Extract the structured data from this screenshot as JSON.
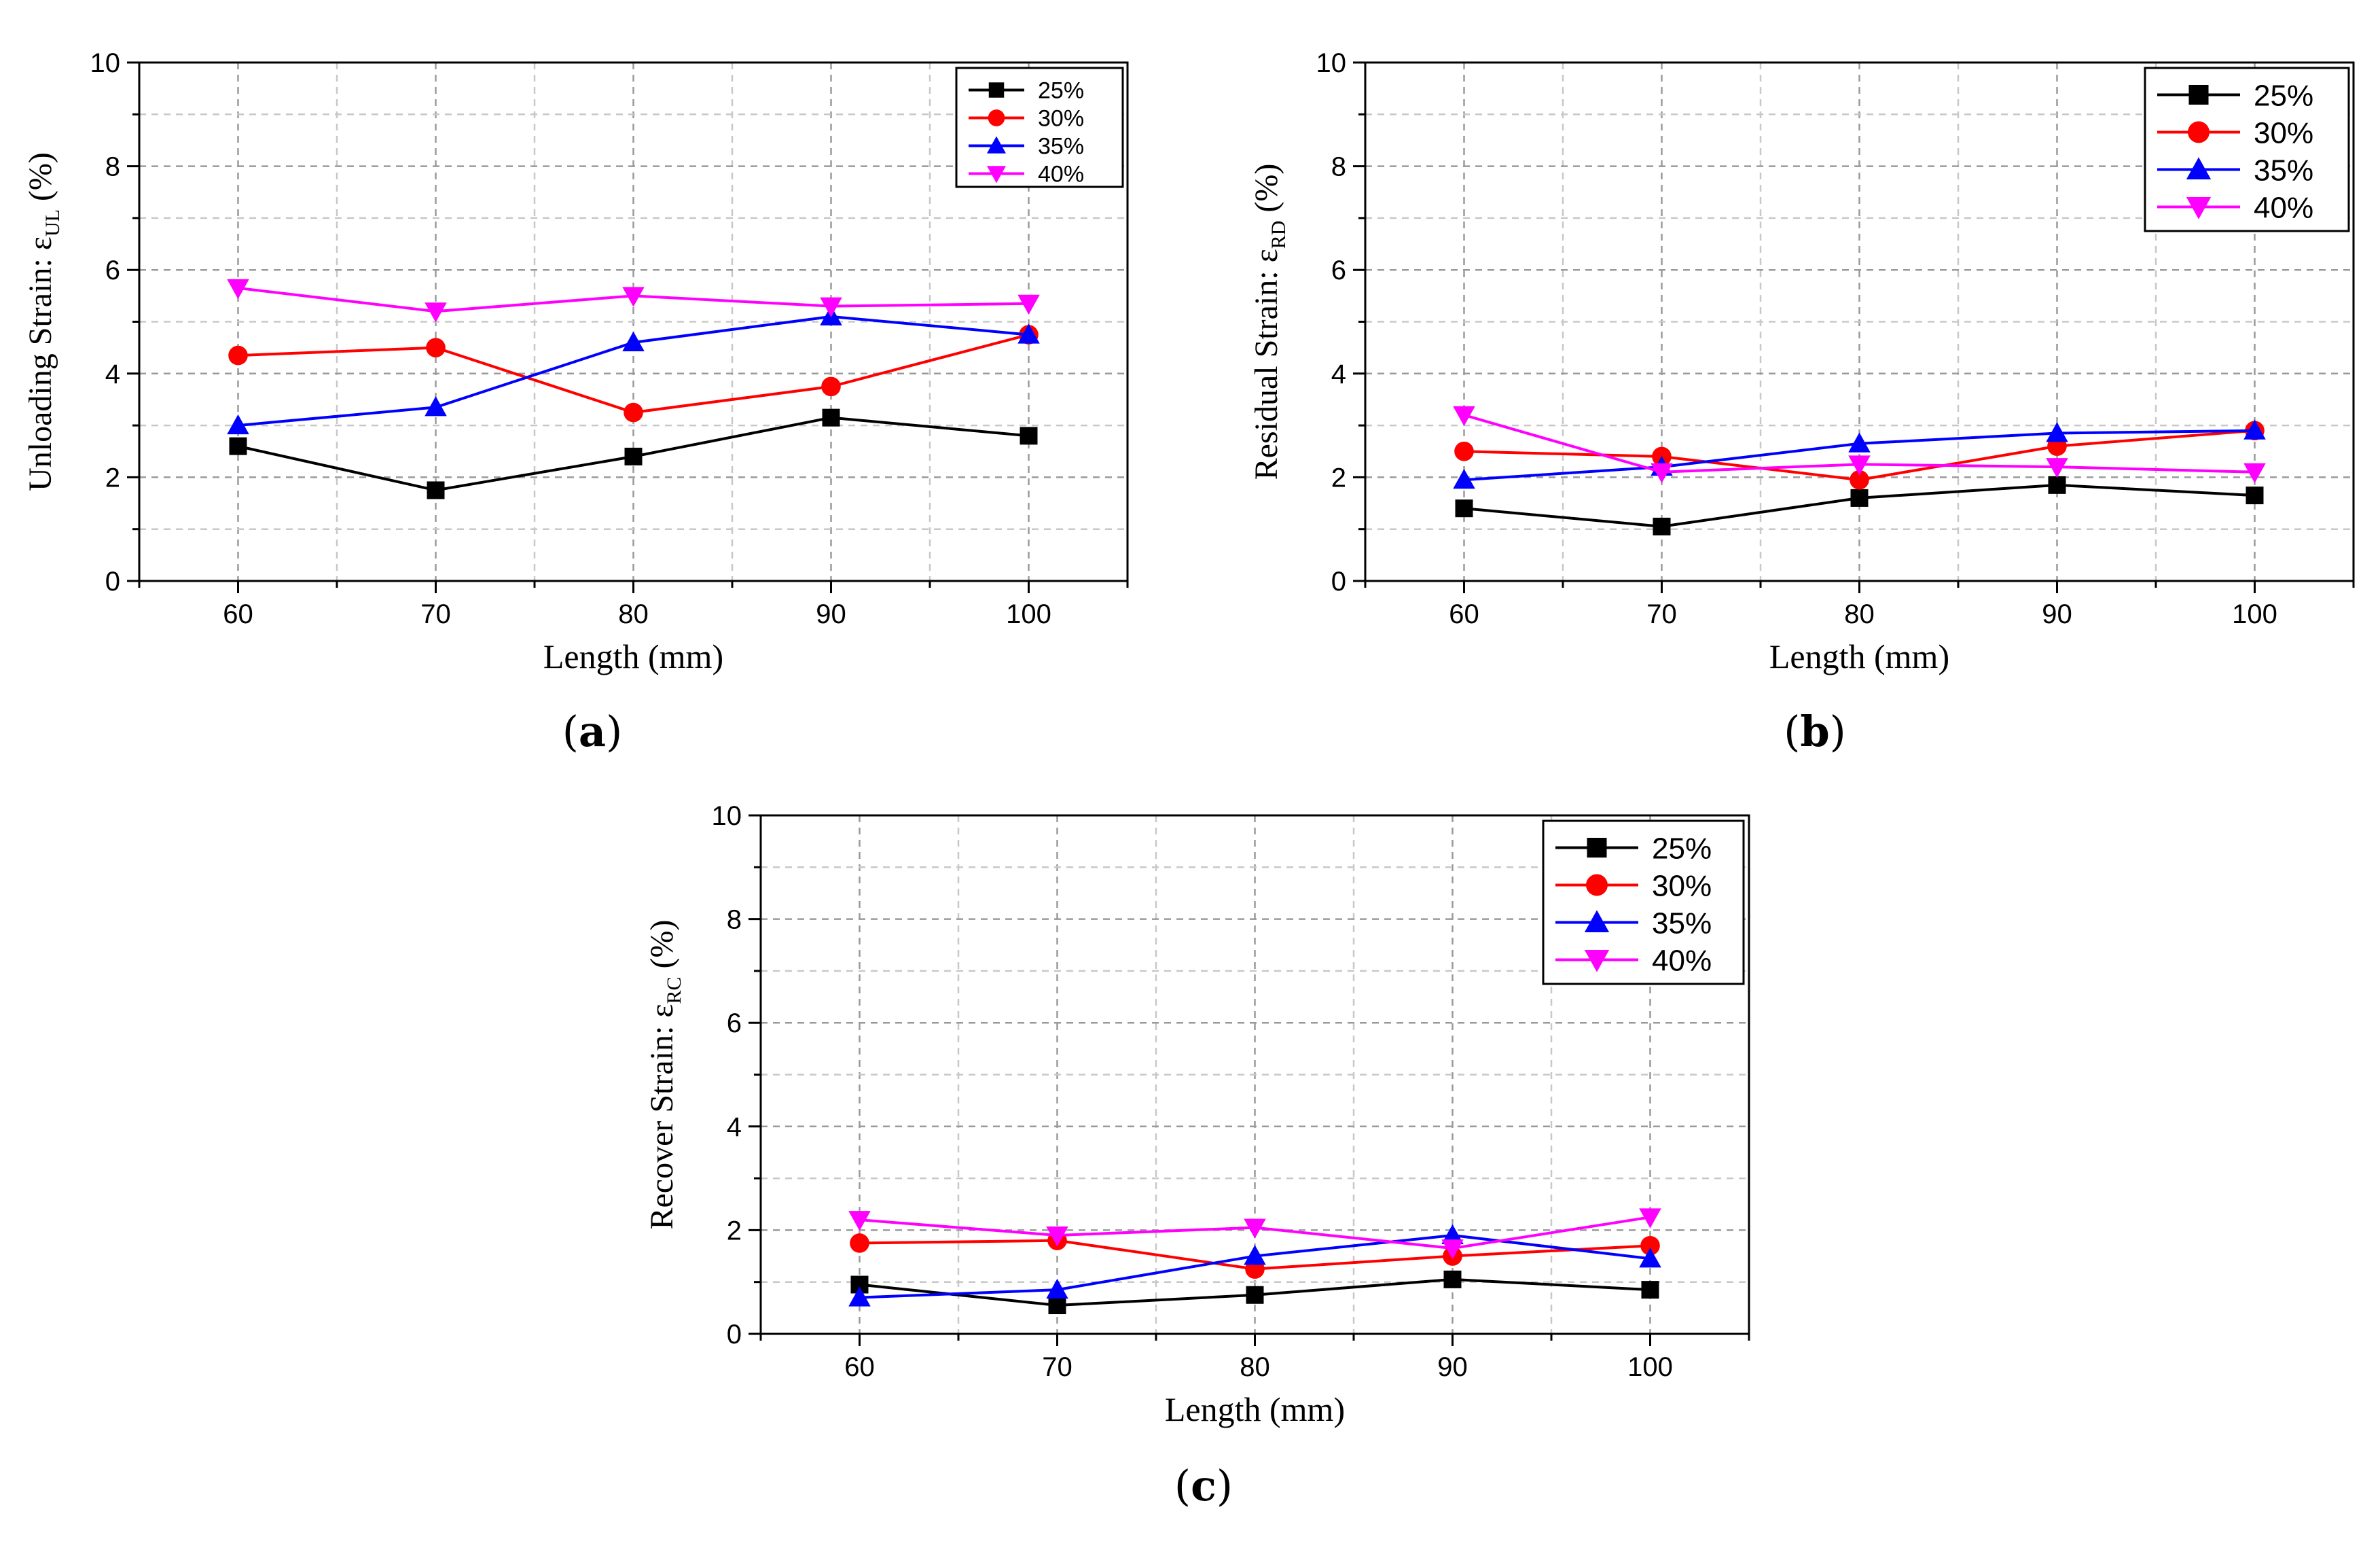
{
  "colors": {
    "25%": "#000000",
    "30%": "#ff0000",
    "35%": "#0000ff",
    "40%": "#ff00ff"
  },
  "chart_data": [
    {
      "panel_label": "a",
      "type": "line",
      "xlabel": "Length (mm)",
      "ylabel_main": "Unloading Strain: ε",
      "ylabel_sub": "UL",
      "ylabel_unit": "(%)",
      "x": [
        60,
        70,
        80,
        90,
        100
      ],
      "xlim": [
        55,
        105
      ],
      "ylim": [
        0,
        10
      ],
      "xticks": [
        "60",
        "70",
        "80",
        "90",
        "100"
      ],
      "yticks": [
        "0",
        "2",
        "4",
        "6",
        "8",
        "10"
      ],
      "legend_position": "top-right",
      "series": [
        {
          "name": "25%",
          "marker": "square",
          "values": [
            2.6,
            1.75,
            2.4,
            3.15,
            2.8
          ]
        },
        {
          "name": "30%",
          "marker": "circle",
          "values": [
            4.35,
            4.5,
            3.25,
            3.75,
            4.75
          ]
        },
        {
          "name": "35%",
          "marker": "triangle-up",
          "values": [
            3.0,
            3.35,
            4.6,
            5.1,
            4.75
          ]
        },
        {
          "name": "40%",
          "marker": "triangle-down",
          "values": [
            5.65,
            5.2,
            5.5,
            5.3,
            5.35
          ]
        }
      ]
    },
    {
      "panel_label": "b",
      "type": "line",
      "xlabel": "Length (mm)",
      "ylabel_main": "Residual Strain: ε",
      "ylabel_sub": "RD",
      "ylabel_unit": "(%)",
      "x": [
        60,
        70,
        80,
        90,
        100
      ],
      "xlim": [
        55,
        105
      ],
      "ylim": [
        0,
        10
      ],
      "xticks": [
        "60",
        "70",
        "80",
        "90",
        "100"
      ],
      "yticks": [
        "0",
        "2",
        "4",
        "6",
        "8",
        "10"
      ],
      "legend_position": "top-right",
      "series": [
        {
          "name": "25%",
          "marker": "square",
          "values": [
            1.4,
            1.05,
            1.6,
            1.85,
            1.65
          ]
        },
        {
          "name": "30%",
          "marker": "circle",
          "values": [
            2.5,
            2.4,
            1.95,
            2.6,
            2.9
          ]
        },
        {
          "name": "35%",
          "marker": "triangle-up",
          "values": [
            1.95,
            2.2,
            2.65,
            2.85,
            2.9
          ]
        },
        {
          "name": "40%",
          "marker": "triangle-down",
          "values": [
            3.2,
            2.1,
            2.25,
            2.2,
            2.1
          ]
        }
      ]
    },
    {
      "panel_label": "c",
      "type": "line",
      "xlabel": "Length (mm)",
      "ylabel_main": "Recover Strain: ε",
      "ylabel_sub": "RC",
      "ylabel_unit": "(%)",
      "x": [
        60,
        70,
        80,
        90,
        100
      ],
      "xlim": [
        55,
        105
      ],
      "ylim": [
        0,
        10
      ],
      "xticks": [
        "60",
        "70",
        "80",
        "90",
        "100"
      ],
      "yticks": [
        "0",
        "2",
        "4",
        "6",
        "8",
        "10"
      ],
      "legend_position": "top-right",
      "series": [
        {
          "name": "25%",
          "marker": "square",
          "values": [
            0.95,
            0.55,
            0.75,
            1.05,
            0.85
          ]
        },
        {
          "name": "30%",
          "marker": "circle",
          "values": [
            1.75,
            1.8,
            1.25,
            1.5,
            1.7
          ]
        },
        {
          "name": "35%",
          "marker": "triangle-up",
          "values": [
            0.7,
            0.85,
            1.5,
            1.9,
            1.45
          ]
        },
        {
          "name": "40%",
          "marker": "triangle-down",
          "values": [
            2.2,
            1.9,
            2.05,
            1.65,
            2.25
          ]
        }
      ]
    }
  ]
}
